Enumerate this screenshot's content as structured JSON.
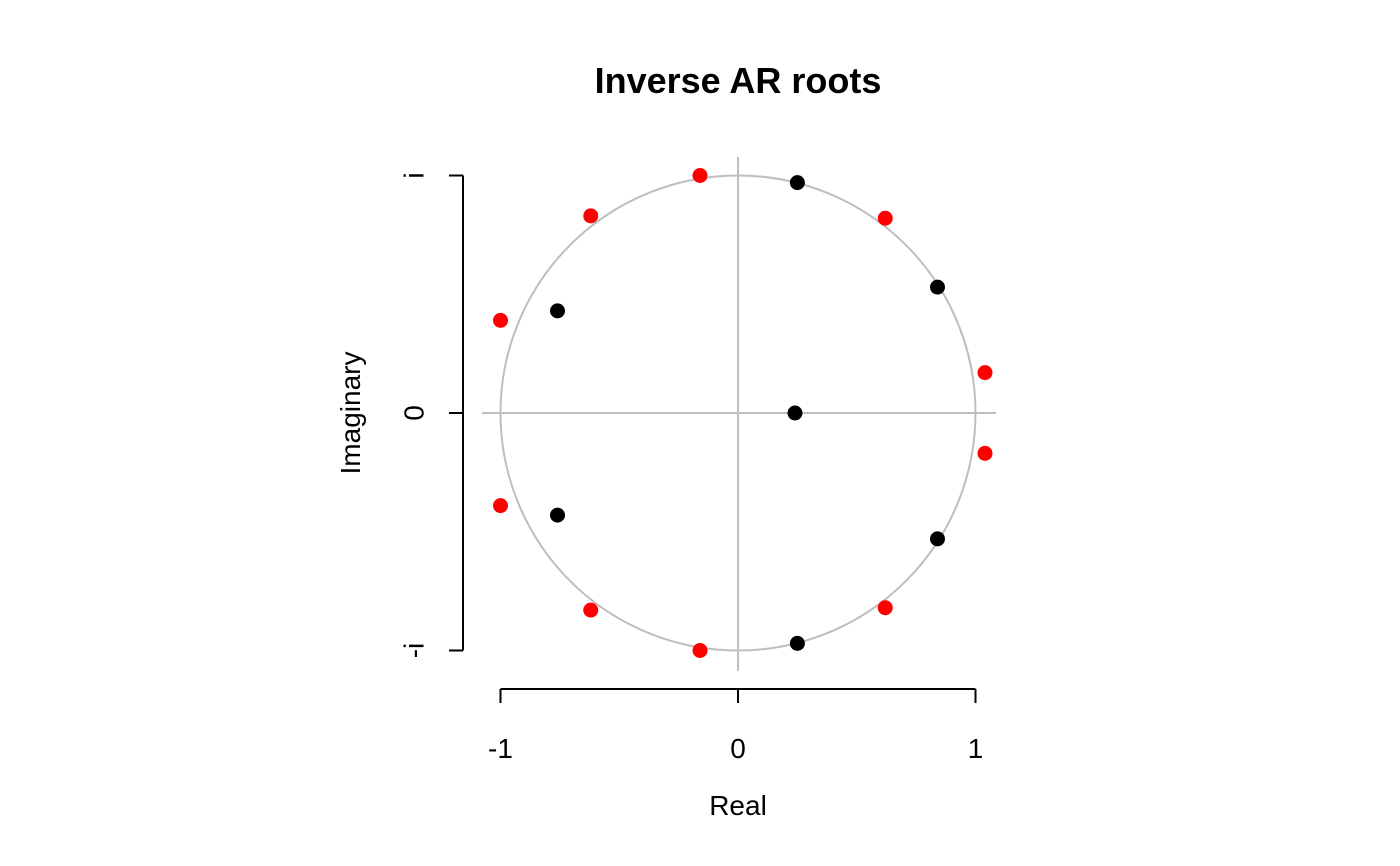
{
  "chart_data": {
    "type": "scatter",
    "title": "Inverse AR roots",
    "xlabel": "Real",
    "ylabel": "Imaginary",
    "xlim": [
      -1,
      1
    ],
    "ylim": [
      -1,
      1
    ],
    "x_ticks": [
      {
        "value": -1,
        "label": "-1"
      },
      {
        "value": 0,
        "label": "0"
      },
      {
        "value": 1,
        "label": "1"
      }
    ],
    "y_ticks": [
      {
        "value": -1,
        "label": "-i"
      },
      {
        "value": 0,
        "label": "0"
      },
      {
        "value": 1,
        "label": "i"
      }
    ],
    "unit_circle": true,
    "reference_lines": true,
    "grid": false,
    "colors": {
      "circle": "#bebebe",
      "reference_lines": "#bebebe",
      "axis": "#000000"
    },
    "series": [
      {
        "color": "#000000",
        "points": [
          {
            "x": 0.25,
            "y": 0.97
          },
          {
            "x": 0.25,
            "y": -0.97
          },
          {
            "x": 0.84,
            "y": 0.53
          },
          {
            "x": 0.84,
            "y": -0.53
          },
          {
            "x": -0.76,
            "y": 0.43
          },
          {
            "x": -0.76,
            "y": -0.43
          },
          {
            "x": 0.24,
            "y": 0.0
          }
        ]
      },
      {
        "color": "#ff0000",
        "points": [
          {
            "x": -0.16,
            "y": 1.0
          },
          {
            "x": -0.16,
            "y": -1.0
          },
          {
            "x": -0.62,
            "y": 0.83
          },
          {
            "x": -0.62,
            "y": -0.83
          },
          {
            "x": 0.62,
            "y": 0.82
          },
          {
            "x": 0.62,
            "y": -0.82
          },
          {
            "x": -1.0,
            "y": 0.39
          },
          {
            "x": -1.0,
            "y": -0.39
          },
          {
            "x": 1.04,
            "y": 0.17
          },
          {
            "x": 1.04,
            "y": -0.17
          }
        ]
      }
    ]
  }
}
